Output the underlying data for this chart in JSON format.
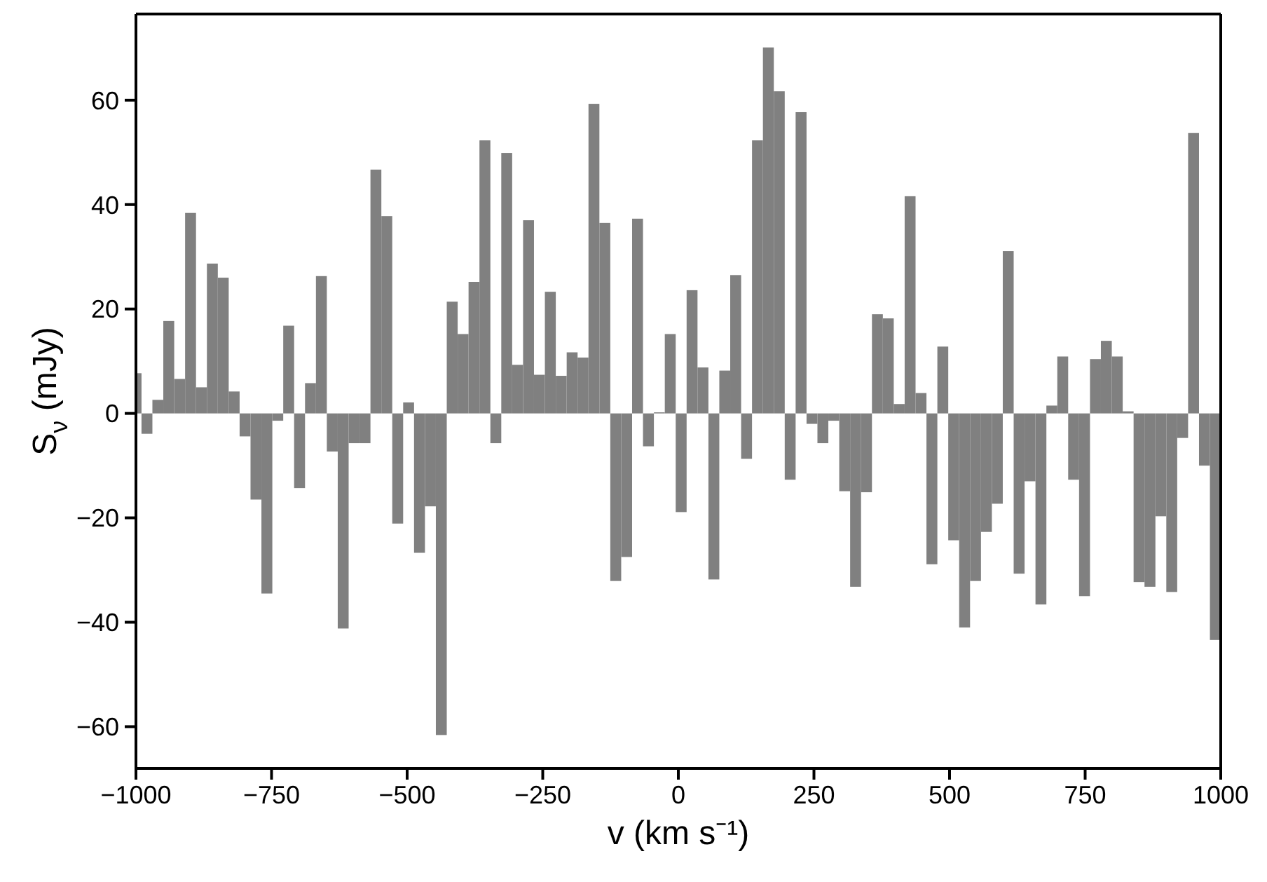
{
  "chart_data": {
    "type": "histogram",
    "xlabel": "v (km s⁻¹)",
    "ylabel": "S$_{ν}$ (mJy)",
    "bins": [
      -1000,
      -990,
      -969.9,
      -949.8,
      -929.7,
      -909.6,
      -889.5,
      -869.4,
      -849.3,
      -829.2,
      -809.1,
      -789,
      -768.9,
      -748.8,
      -728.7,
      -708.6,
      -688.5,
      -668.4,
      -648.3,
      -628.2,
      -608.1,
      -588,
      -567.9,
      -547.8,
      -527.7,
      -507.6,
      -487.5,
      -467.4,
      -447.3,
      -427.2,
      -407.1,
      -387,
      -366.9,
      -346.8,
      -326.7,
      -306.6,
      -286.5,
      -266.4,
      -246.3,
      -226.2,
      -206.1,
      -186,
      -165.9,
      -145.8,
      -125.7,
      -105.6,
      -85.5,
      -65.4,
      -45.3,
      -25.2,
      -5.1,
      15,
      35.1,
      55.2,
      75.3,
      95.4,
      115.5,
      135.6,
      155.7,
      175.8,
      195.9,
      216,
      236.1,
      256.2,
      276.3,
      296.4,
      316.5,
      336.6,
      356.7,
      376.8,
      396.9,
      417,
      437.1,
      457.2,
      477.3,
      497.4,
      517.5,
      537.6,
      557.7,
      577.8,
      597.9,
      618,
      638.1,
      658.2,
      678.3,
      698.4,
      718.5,
      738.6,
      758.7,
      778.8,
      798.9,
      819,
      839.1,
      859.2,
      879.3,
      899.4,
      919.5,
      939.6,
      959.7,
      979.8,
      1000
    ],
    "values": [
      7.7,
      -3.9,
      2.6,
      17.7,
      6.6,
      38.4,
      5.0,
      28.7,
      26.0,
      4.2,
      -4.4,
      -16.5,
      -34.5,
      -1.4,
      16.8,
      -14.3,
      5.8,
      26.3,
      -7.3,
      -41.2,
      -5.7,
      -5.7,
      46.7,
      37.8,
      -21.1,
      2.1,
      -26.7,
      -17.8,
      -61.6,
      21.4,
      15.2,
      25.2,
      52.3,
      -5.7,
      49.9,
      9.3,
      37.0,
      7.4,
      23.3,
      7.2,
      11.7,
      10.7,
      59.3,
      36.5,
      -32.1,
      -27.5,
      37.3,
      -6.3,
      0.2,
      15.2,
      -18.9,
      23.6,
      8.8,
      -31.8,
      8.2,
      26.5,
      -8.7,
      52.3,
      70.1,
      61.7,
      -12.7,
      57.7,
      -2.0,
      -5.7,
      -1.4,
      -14.9,
      -33.2,
      -15.1,
      19.0,
      18.2,
      1.8,
      41.6,
      3.9,
      -28.9,
      12.8,
      -24.3,
      -41.0,
      -32.1,
      -22.7,
      -17.3,
      31.1,
      -30.7,
      -13.0,
      -36.6,
      1.5,
      10.9,
      -12.7,
      -35.0,
      10.4,
      13.9,
      10.9,
      0.4,
      -32.3,
      -33.2,
      -19.7,
      -34.2,
      -4.7,
      53.7,
      -10.0,
      -43.4
    ],
    "color": "#808080",
    "xlim": [
      -1000,
      1000
    ],
    "xticks": [
      {
        "value": -1000,
        "label": "−1000"
      },
      {
        "value": -750,
        "label": "−750"
      },
      {
        "value": -500,
        "label": "−500"
      },
      {
        "value": -250,
        "label": "−250"
      },
      0,
      250,
      500,
      750,
      1000
    ],
    "ylim": [
      -68,
      76.5
    ],
    "yticks": [
      {
        "value": -60,
        "label": "−60"
      },
      {
        "value": -40,
        "label": "−40"
      },
      {
        "value": -20,
        "label": "−20"
      },
      0,
      20,
      40,
      60
    ],
    "grid": false,
    "legend": false
  }
}
